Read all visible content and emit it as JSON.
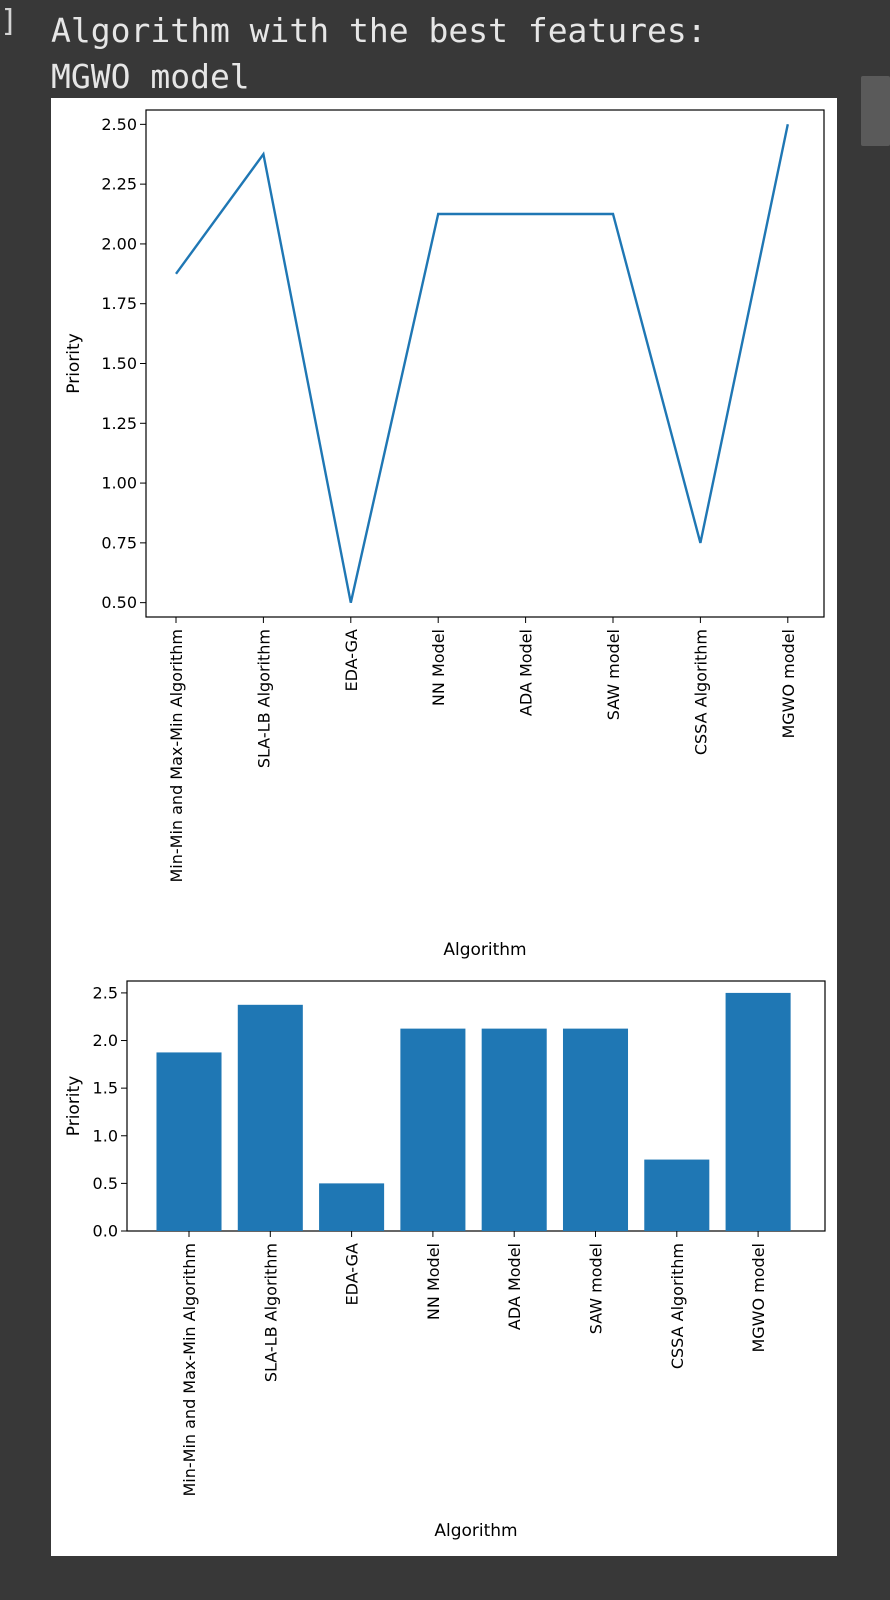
{
  "output": {
    "bracket": "]",
    "text": "Algorithm with the best features:\nMGWO model"
  },
  "colors": {
    "series": "#1f77b4",
    "page_bg": "#383838",
    "figure_bg": "#ffffff"
  },
  "chart_data": [
    {
      "type": "line",
      "categories": [
        "Min-Min and Max-Min Algorithm",
        "SLA-LB Algorithm",
        "EDA-GA",
        "NN Model",
        "ADA Model",
        "SAW  model",
        "CSSA Algorithm",
        "MGWO model"
      ],
      "values": [
        1.875,
        2.375,
        0.5,
        2.125,
        2.125,
        2.125,
        0.75,
        2.5
      ],
      "xlabel": "Algorithm",
      "ylabel": "Priority",
      "yticks": [
        "0.50",
        "0.75",
        "1.00",
        "1.25",
        "1.50",
        "1.75",
        "2.00",
        "2.25",
        "2.50"
      ],
      "ylim": [
        0.44,
        2.56
      ],
      "color": "#1f77b4",
      "grid": false
    },
    {
      "type": "bar",
      "categories": [
        "Min-Min and Max-Min Algorithm",
        "SLA-LB Algorithm",
        "EDA-GA",
        "NN Model",
        "ADA Model",
        "SAW  model",
        "CSSA Algorithm",
        "MGWO model"
      ],
      "values": [
        1.875,
        2.375,
        0.5,
        2.125,
        2.125,
        2.125,
        0.75,
        2.5
      ],
      "xlabel": "Algorithm",
      "ylabel": "Priority",
      "yticks": [
        "0.0",
        "0.5",
        "1.0",
        "1.5",
        "2.0",
        "2.5"
      ],
      "ylim": [
        0,
        2.625
      ],
      "color": "#1f77b4",
      "grid": false
    }
  ]
}
